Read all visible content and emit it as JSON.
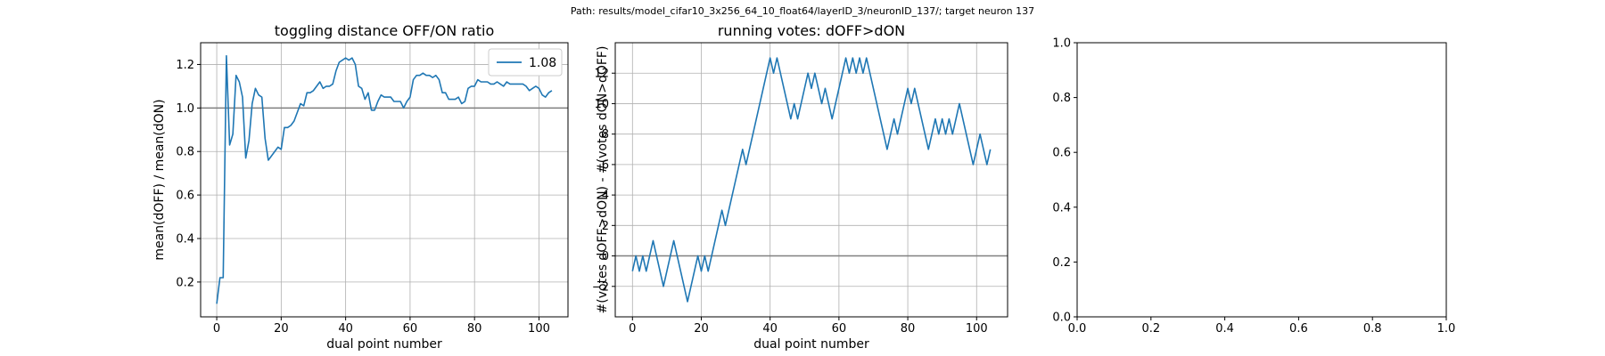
{
  "suptitle": "Path: results/model_cifar10_3x256_64_10_float64/layerID_3/neuronID_137/; target neuron 137",
  "colors": {
    "line": "#1f77b4",
    "grid": "#b0b0b0",
    "refline": "#808080",
    "axis": "#000000"
  },
  "chart_data": [
    {
      "type": "line",
      "title": "toggling distance OFF/ON ratio",
      "xlabel": "dual point number",
      "ylabel": "mean(dOFF) / mean(dON)",
      "xlim": [
        -5,
        109
      ],
      "ylim": [
        0.04,
        1.3
      ],
      "xticks": [
        0,
        20,
        40,
        60,
        80,
        100
      ],
      "yticks": [
        0.2,
        0.4,
        0.6,
        0.8,
        1.0,
        1.2
      ],
      "xtick_labels": [
        "0",
        "20",
        "40",
        "60",
        "80",
        "100"
      ],
      "ytick_labels": [
        "0.2",
        "0.4",
        "0.6",
        "0.8",
        "1.0",
        "1.2"
      ],
      "grid": true,
      "hline": 1.0,
      "legend": {
        "position": "upper right",
        "entries": [
          "1.08"
        ]
      },
      "series": [
        {
          "name": "1.08",
          "x": [
            0,
            1,
            2,
            3,
            4,
            5,
            6,
            7,
            8,
            9,
            10,
            11,
            12,
            13,
            14,
            15,
            16,
            17,
            18,
            19,
            20,
            21,
            22,
            23,
            24,
            25,
            26,
            27,
            28,
            29,
            30,
            31,
            32,
            33,
            34,
            35,
            36,
            37,
            38,
            39,
            40,
            41,
            42,
            43,
            44,
            45,
            46,
            47,
            48,
            49,
            50,
            51,
            52,
            53,
            54,
            55,
            56,
            57,
            58,
            59,
            60,
            61,
            62,
            63,
            64,
            65,
            66,
            67,
            68,
            69,
            70,
            71,
            72,
            73,
            74,
            75,
            76,
            77,
            78,
            79,
            80,
            81,
            82,
            83,
            84,
            85,
            86,
            87,
            88,
            89,
            90,
            91,
            92,
            93,
            94,
            95,
            96,
            97,
            98,
            99,
            100,
            101,
            102,
            103,
            104
          ],
          "y": [
            0.1,
            0.22,
            0.22,
            1.24,
            0.83,
            0.88,
            1.15,
            1.12,
            1.05,
            0.77,
            0.85,
            1.02,
            1.09,
            1.06,
            1.05,
            0.86,
            0.76,
            0.78,
            0.8,
            0.82,
            0.81,
            0.91,
            0.91,
            0.92,
            0.94,
            0.98,
            1.02,
            1.01,
            1.07,
            1.07,
            1.08,
            1.1,
            1.12,
            1.09,
            1.1,
            1.1,
            1.11,
            1.17,
            1.21,
            1.22,
            1.23,
            1.22,
            1.23,
            1.2,
            1.1,
            1.09,
            1.04,
            1.07,
            0.99,
            0.99,
            1.03,
            1.06,
            1.05,
            1.05,
            1.05,
            1.03,
            1.03,
            1.03,
            1.0,
            1.03,
            1.05,
            1.13,
            1.15,
            1.15,
            1.16,
            1.15,
            1.15,
            1.14,
            1.15,
            1.13,
            1.07,
            1.07,
            1.04,
            1.04,
            1.04,
            1.05,
            1.02,
            1.03,
            1.09,
            1.1,
            1.1,
            1.13,
            1.12,
            1.12,
            1.12,
            1.11,
            1.11,
            1.12,
            1.11,
            1.1,
            1.12,
            1.11,
            1.11,
            1.11,
            1.11,
            1.11,
            1.1,
            1.08,
            1.09,
            1.1,
            1.09,
            1.06,
            1.05,
            1.07,
            1.08
          ]
        }
      ]
    },
    {
      "type": "line",
      "title": "running votes: dOFF>dON",
      "xlabel": "dual point number",
      "ylabel": "#(votes dOFF>dON) - #(votes dON>dOFF)",
      "xlim": [
        -5,
        109
      ],
      "ylim": [
        -4,
        14
      ],
      "xticks": [
        0,
        20,
        40,
        60,
        80,
        100
      ],
      "yticks": [
        -2,
        0,
        2,
        4,
        6,
        8,
        10,
        12
      ],
      "xtick_labels": [
        "0",
        "20",
        "40",
        "60",
        "80",
        "100"
      ],
      "ytick_labels": [
        "−2",
        "0",
        "2",
        "4",
        "6",
        "8",
        "10",
        "12"
      ],
      "grid": true,
      "hline": 0,
      "series": [
        {
          "x": [
            0,
            1,
            2,
            3,
            4,
            5,
            6,
            7,
            8,
            9,
            10,
            11,
            12,
            13,
            14,
            15,
            16,
            17,
            18,
            19,
            20,
            21,
            22,
            23,
            24,
            25,
            26,
            27,
            28,
            29,
            30,
            31,
            32,
            33,
            34,
            35,
            36,
            37,
            38,
            39,
            40,
            41,
            42,
            43,
            44,
            45,
            46,
            47,
            48,
            49,
            50,
            51,
            52,
            53,
            54,
            55,
            56,
            57,
            58,
            59,
            60,
            61,
            62,
            63,
            64,
            65,
            66,
            67,
            68,
            69,
            70,
            71,
            72,
            73,
            74,
            75,
            76,
            77,
            78,
            79,
            80,
            81,
            82,
            83,
            84,
            85,
            86,
            87,
            88,
            89,
            90,
            91,
            92,
            93,
            94,
            95,
            96,
            97,
            98,
            99,
            100,
            101,
            102,
            103,
            104
          ],
          "y": [
            -1,
            0,
            -1,
            0,
            -1,
            0,
            1,
            0,
            -1,
            -2,
            -1,
            0,
            1,
            0,
            -1,
            -2,
            -3,
            -2,
            -1,
            0,
            -1,
            0,
            -1,
            0,
            1,
            2,
            3,
            2,
            3,
            4,
            5,
            6,
            7,
            6,
            7,
            8,
            9,
            10,
            11,
            12,
            13,
            12,
            13,
            12,
            11,
            10,
            9,
            10,
            9,
            10,
            11,
            12,
            11,
            12,
            11,
            10,
            11,
            10,
            9,
            10,
            11,
            12,
            13,
            12,
            13,
            12,
            13,
            12,
            13,
            12,
            11,
            10,
            9,
            8,
            7,
            8,
            9,
            8,
            9,
            10,
            11,
            10,
            11,
            10,
            9,
            8,
            7,
            8,
            9,
            8,
            9,
            8,
            9,
            8,
            9,
            10,
            9,
            8,
            7,
            6,
            7,
            8,
            7,
            6,
            7
          ]
        }
      ]
    },
    {
      "type": "line",
      "title": "",
      "xlim": [
        0,
        1
      ],
      "ylim": [
        0,
        1
      ],
      "xticks": [
        0,
        0.2,
        0.4,
        0.6,
        0.8,
        1.0
      ],
      "yticks": [
        0,
        0.2,
        0.4,
        0.6,
        0.8,
        1.0
      ],
      "xtick_labels": [
        "0.0",
        "0.2",
        "0.4",
        "0.6",
        "0.8",
        "1.0"
      ],
      "ytick_labels": [
        "0.0",
        "0.2",
        "0.4",
        "0.6",
        "0.8",
        "1.0"
      ],
      "grid": false,
      "series": []
    }
  ]
}
